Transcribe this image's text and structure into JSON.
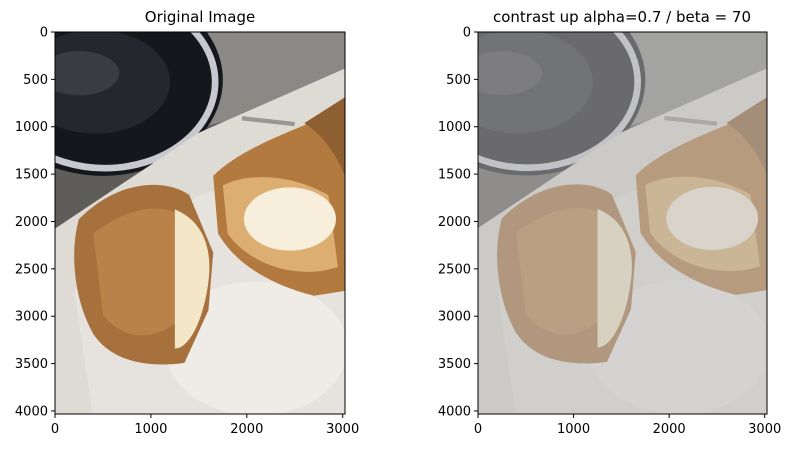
{
  "chart_data": [
    {
      "type": "image",
      "title": "Original Image",
      "xlabel": "",
      "ylabel": "",
      "xlim": [
        0,
        3024
      ],
      "ylim": [
        4032,
        0
      ],
      "xticks": [
        0,
        1000,
        2000,
        3000
      ],
      "yticks": [
        0,
        500,
        1000,
        1500,
        2000,
        2500,
        3000,
        3500,
        4000
      ],
      "image_content": "cut cream puff pastry on a white plate with a black saucer in the upper left",
      "image_variant": "original"
    },
    {
      "type": "image",
      "title": "contrast up alpha=0.7 / beta = 70",
      "xlabel": "",
      "ylabel": "",
      "xlim": [
        0,
        3024
      ],
      "ylim": [
        4032,
        0
      ],
      "xticks": [
        0,
        1000,
        2000,
        3000
      ],
      "yticks": [
        0,
        500,
        1000,
        1500,
        2000,
        2500,
        3000,
        3500,
        4000
      ],
      "image_content": "same cream puff photo with reduced contrast and raised brightness",
      "image_variant": "adjusted",
      "alpha": 0.7,
      "beta": 70
    }
  ]
}
